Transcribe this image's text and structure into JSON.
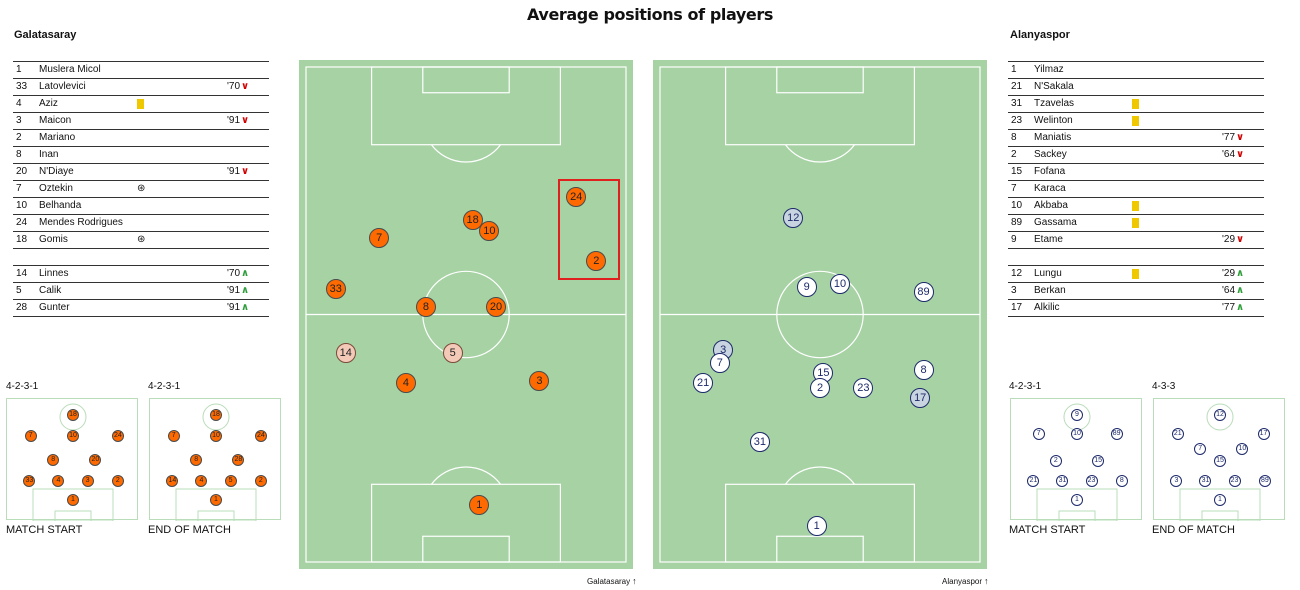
{
  "title": "Average positions of players",
  "colors": {
    "home": "#ff6a00",
    "away": "#ffffff",
    "pitch": "#a6d2a4",
    "card": "#f0c800",
    "sub_out": "#d20000",
    "sub_in": "#2e9e3a",
    "highlight": "#e01f1f"
  },
  "home": {
    "name": "Galatasaray",
    "lineup": [
      {
        "num": "1",
        "name": "Muslera Micol"
      },
      {
        "num": "33",
        "name": "Latovlevici",
        "sub": "'70",
        "dir": "out"
      },
      {
        "num": "4",
        "name": "Aziz",
        "card": true
      },
      {
        "num": "3",
        "name": "Maicon",
        "sub": "'91",
        "dir": "out"
      },
      {
        "num": "2",
        "name": "Mariano"
      },
      {
        "num": "8",
        "name": "Inan"
      },
      {
        "num": "20",
        "name": "N'Diaye",
        "sub": "'91",
        "dir": "out"
      },
      {
        "num": "7",
        "name": "Oztekin",
        "goal": true
      },
      {
        "num": "10",
        "name": "Belhanda"
      },
      {
        "num": "24",
        "name": "Mendes Rodrigues"
      },
      {
        "num": "18",
        "name": "Gomis",
        "goal": true
      }
    ],
    "subs": [
      {
        "num": "14",
        "name": "Linnes",
        "sub": "'70",
        "dir": "in"
      },
      {
        "num": "5",
        "name": "Calik",
        "sub": "'91",
        "dir": "in"
      },
      {
        "num": "28",
        "name": "Gunter",
        "sub": "'91",
        "dir": "in"
      }
    ],
    "start_formation": "4-2-3-1",
    "end_formation": "4-2-3-1",
    "start_caption": "MATCH START",
    "end_caption": "END OF MATCH",
    "pitch_label": "Galatasaray",
    "up_arrow": "↑"
  },
  "away": {
    "name": "Alanyaspor",
    "lineup": [
      {
        "num": "1",
        "name": "Yilmaz"
      },
      {
        "num": "21",
        "name": "N'Sakala"
      },
      {
        "num": "31",
        "name": "Tzavelas",
        "card": true
      },
      {
        "num": "23",
        "name": "Welinton",
        "card": true
      },
      {
        "num": "8",
        "name": "Maniatis",
        "sub": "'77",
        "dir": "out"
      },
      {
        "num": "2",
        "name": "Sackey",
        "sub": "'64",
        "dir": "out"
      },
      {
        "num": "15",
        "name": "Fofana"
      },
      {
        "num": "7",
        "name": "Karaca"
      },
      {
        "num": "10",
        "name": "Akbaba",
        "card": true
      },
      {
        "num": "89",
        "name": "Gassama",
        "card": true
      },
      {
        "num": "9",
        "name": "Etame",
        "sub": "'29",
        "dir": "out"
      }
    ],
    "subs": [
      {
        "num": "12",
        "name": "Lungu",
        "card": true,
        "sub": "'29",
        "dir": "in"
      },
      {
        "num": "3",
        "name": "Berkan",
        "sub": "'64",
        "dir": "in"
      },
      {
        "num": "17",
        "name": "Alkilic",
        "sub": "'77",
        "dir": "in"
      }
    ],
    "start_formation": "4-2-3-1",
    "end_formation": "4-3-3",
    "start_caption": "MATCH START",
    "end_caption": "END OF MATCH",
    "pitch_label": "Alanyaspor",
    "up_arrow": "↑"
  },
  "chart_data": {
    "type": "scatter",
    "title": "Average positions of players",
    "pitches": [
      {
        "team": "Galatasaray",
        "players": [
          {
            "num": "24",
            "x": 0.83,
            "y": 0.27
          },
          {
            "num": "18",
            "x": 0.52,
            "y": 0.315
          },
          {
            "num": "10",
            "x": 0.57,
            "y": 0.335
          },
          {
            "num": "7",
            "x": 0.24,
            "y": 0.35
          },
          {
            "num": "2",
            "x": 0.89,
            "y": 0.395
          },
          {
            "num": "33",
            "x": 0.11,
            "y": 0.45
          },
          {
            "num": "8",
            "x": 0.38,
            "y": 0.485
          },
          {
            "num": "20",
            "x": 0.59,
            "y": 0.485
          },
          {
            "num": "14",
            "x": 0.14,
            "y": 0.575,
            "subbed": true
          },
          {
            "num": "5",
            "x": 0.46,
            "y": 0.575,
            "subbed": true
          },
          {
            "num": "4",
            "x": 0.32,
            "y": 0.635
          },
          {
            "num": "3",
            "x": 0.72,
            "y": 0.63
          },
          {
            "num": "1",
            "x": 0.54,
            "y": 0.875
          }
        ]
      },
      {
        "team": "Alanyaspor",
        "players": [
          {
            "num": "12",
            "x": 0.42,
            "y": 0.31,
            "subbed": true
          },
          {
            "num": "9",
            "x": 0.46,
            "y": 0.445
          },
          {
            "num": "10",
            "x": 0.56,
            "y": 0.44
          },
          {
            "num": "89",
            "x": 0.81,
            "y": 0.455
          },
          {
            "num": "3",
            "x": 0.21,
            "y": 0.57,
            "subbed": true
          },
          {
            "num": "7",
            "x": 0.2,
            "y": 0.595
          },
          {
            "num": "21",
            "x": 0.15,
            "y": 0.635
          },
          {
            "num": "15",
            "x": 0.51,
            "y": 0.615
          },
          {
            "num": "2",
            "x": 0.5,
            "y": 0.645
          },
          {
            "num": "23",
            "x": 0.63,
            "y": 0.645
          },
          {
            "num": "8",
            "x": 0.81,
            "y": 0.61
          },
          {
            "num": "17",
            "x": 0.8,
            "y": 0.665,
            "subbed": true
          },
          {
            "num": "31",
            "x": 0.32,
            "y": 0.75
          },
          {
            "num": "1",
            "x": 0.49,
            "y": 0.915
          }
        ]
      }
    ],
    "formations": [
      {
        "team": "Galatasaray",
        "stage": "MATCH START",
        "formation": "4-2-3-1",
        "players": [
          {
            "num": "18",
            "x": 0.5,
            "y": 0.13
          },
          {
            "num": "7",
            "x": 0.18,
            "y": 0.3
          },
          {
            "num": "10",
            "x": 0.5,
            "y": 0.3
          },
          {
            "num": "24",
            "x": 0.84,
            "y": 0.3
          },
          {
            "num": "8",
            "x": 0.35,
            "y": 0.5
          },
          {
            "num": "20",
            "x": 0.67,
            "y": 0.5
          },
          {
            "num": "33",
            "x": 0.17,
            "y": 0.67
          },
          {
            "num": "4",
            "x": 0.39,
            "y": 0.67
          },
          {
            "num": "3",
            "x": 0.61,
            "y": 0.67
          },
          {
            "num": "2",
            "x": 0.84,
            "y": 0.67
          },
          {
            "num": "1",
            "x": 0.5,
            "y": 0.83
          }
        ]
      },
      {
        "team": "Galatasaray",
        "stage": "END OF MATCH",
        "formation": "4-2-3-1",
        "players": [
          {
            "num": "18",
            "x": 0.5,
            "y": 0.13
          },
          {
            "num": "7",
            "x": 0.18,
            "y": 0.3
          },
          {
            "num": "10",
            "x": 0.5,
            "y": 0.3
          },
          {
            "num": "24",
            "x": 0.84,
            "y": 0.3
          },
          {
            "num": "8",
            "x": 0.35,
            "y": 0.5
          },
          {
            "num": "28",
            "x": 0.67,
            "y": 0.5
          },
          {
            "num": "14",
            "x": 0.17,
            "y": 0.67
          },
          {
            "num": "4",
            "x": 0.39,
            "y": 0.67
          },
          {
            "num": "5",
            "x": 0.61,
            "y": 0.67
          },
          {
            "num": "2",
            "x": 0.84,
            "y": 0.67
          },
          {
            "num": "1",
            "x": 0.5,
            "y": 0.83
          }
        ]
      },
      {
        "team": "Alanyaspor",
        "stage": "MATCH START",
        "formation": "4-2-3-1",
        "players": [
          {
            "num": "9",
            "x": 0.5,
            "y": 0.13
          },
          {
            "num": "7",
            "x": 0.21,
            "y": 0.29
          },
          {
            "num": "10",
            "x": 0.5,
            "y": 0.29
          },
          {
            "num": "89",
            "x": 0.8,
            "y": 0.29
          },
          {
            "num": "2",
            "x": 0.34,
            "y": 0.51
          },
          {
            "num": "15",
            "x": 0.66,
            "y": 0.51
          },
          {
            "num": "21",
            "x": 0.17,
            "y": 0.67
          },
          {
            "num": "31",
            "x": 0.39,
            "y": 0.67
          },
          {
            "num": "23",
            "x": 0.61,
            "y": 0.67
          },
          {
            "num": "8",
            "x": 0.84,
            "y": 0.67
          },
          {
            "num": "1",
            "x": 0.5,
            "y": 0.83
          }
        ]
      },
      {
        "team": "Alanyaspor",
        "stage": "END OF MATCH",
        "formation": "4-3-3",
        "players": [
          {
            "num": "12",
            "x": 0.5,
            "y": 0.13
          },
          {
            "num": "21",
            "x": 0.18,
            "y": 0.29
          },
          {
            "num": "17",
            "x": 0.83,
            "y": 0.29
          },
          {
            "num": "7",
            "x": 0.35,
            "y": 0.41
          },
          {
            "num": "10",
            "x": 0.67,
            "y": 0.41
          },
          {
            "num": "15",
            "x": 0.5,
            "y": 0.51
          },
          {
            "num": "3",
            "x": 0.17,
            "y": 0.67
          },
          {
            "num": "31",
            "x": 0.39,
            "y": 0.67
          },
          {
            "num": "23",
            "x": 0.61,
            "y": 0.67
          },
          {
            "num": "89",
            "x": 0.84,
            "y": 0.67
          },
          {
            "num": "1",
            "x": 0.5,
            "y": 0.83
          }
        ]
      }
    ]
  }
}
